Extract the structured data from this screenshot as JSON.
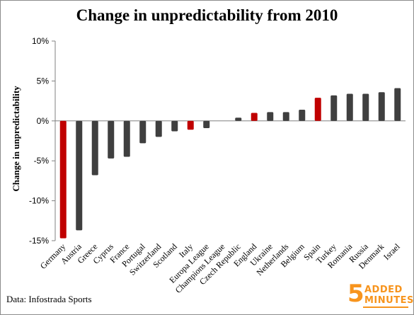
{
  "chart_data": {
    "type": "bar",
    "title": "Change in unpredictability from 2010",
    "ylabel": "Change in unpredictability",
    "xlabel": "",
    "ylim": [
      -15,
      10
    ],
    "yticks": [
      10,
      5,
      0,
      -5,
      -10,
      -15
    ],
    "ytick_labels": [
      "10%",
      "5%",
      "0%",
      "-5%",
      "-10%",
      "-15%"
    ],
    "grid": false,
    "legend": "none",
    "categories": [
      "Germany",
      "Austria",
      "Greece",
      "Cyprus",
      "France",
      "Portugal",
      "Switzerland",
      "Scotland",
      "Italy",
      "Europa League",
      "Champions League",
      "Czech Republic",
      "England",
      "Ukraine",
      "Netherlands",
      "Belgium",
      "Spain",
      "Turkey",
      "Romania",
      "Russia",
      "Denmark",
      "Israel"
    ],
    "values": [
      -14.7,
      -13.7,
      -6.8,
      -4.7,
      -4.5,
      -2.8,
      -2.0,
      -1.3,
      -1.1,
      -0.9,
      0.0,
      0.4,
      1.0,
      1.1,
      1.1,
      1.4,
      2.9,
      3.2,
      3.4,
      3.4,
      3.6,
      4.1
    ],
    "bar_colors": [
      "#c00000",
      "#3f3f3f",
      "#3f3f3f",
      "#3f3f3f",
      "#3f3f3f",
      "#3f3f3f",
      "#3f3f3f",
      "#3f3f3f",
      "#c00000",
      "#3f3f3f",
      "#3f3f3f",
      "#3f3f3f",
      "#c00000",
      "#3f3f3f",
      "#3f3f3f",
      "#3f3f3f",
      "#c00000",
      "#3f3f3f",
      "#3f3f3f",
      "#3f3f3f",
      "#3f3f3f",
      "#3f3f3f"
    ]
  },
  "source_text": "Data: Infostrada Sports",
  "logo": {
    "number": "5",
    "line1": "ADDED",
    "line2": "MINUTES"
  },
  "colors": {
    "highlight": "#c00000",
    "default": "#3f3f3f",
    "logo": "#f7941d"
  }
}
